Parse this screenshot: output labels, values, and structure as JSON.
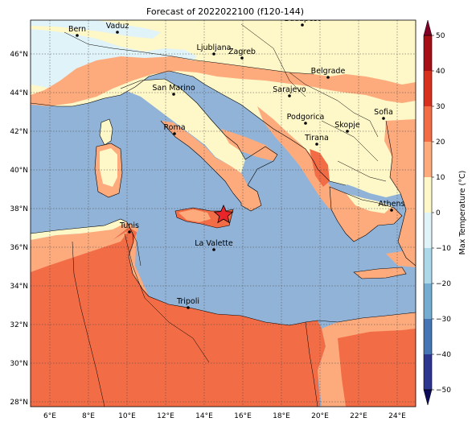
{
  "title": "Forecast of 2022022100 (f120-144)",
  "colorbar": {
    "label": "Max Temperature (°C)",
    "ticks": [
      "50",
      "40",
      "30",
      "20",
      "10",
      "0",
      "−10",
      "−20",
      "−30",
      "−40",
      "−50"
    ]
  },
  "axes": {
    "lon_ticks": [
      "6°E",
      "8°E",
      "10°E",
      "12°E",
      "14°E",
      "16°E",
      "18°E",
      "20°E",
      "22°E",
      "24°E"
    ],
    "lat_ticks": [
      "46°N",
      "44°N",
      "42°N",
      "40°N",
      "38°N",
      "36°N",
      "34°N",
      "32°N",
      "30°N",
      "28°N"
    ]
  },
  "cities": [
    {
      "name": "Bern"
    },
    {
      "name": "Vaduz"
    },
    {
      "name": "Budapest"
    },
    {
      "name": "Ljubljana"
    },
    {
      "name": "Zagreb"
    },
    {
      "name": "Belgrade"
    },
    {
      "name": "San Marino"
    },
    {
      "name": "Sarajevo"
    },
    {
      "name": "Sofia"
    },
    {
      "name": "Podgorica"
    },
    {
      "name": "Skopje"
    },
    {
      "name": "Roma"
    },
    {
      "name": "Tirana"
    },
    {
      "name": "Athens"
    },
    {
      "name": "Tunis"
    },
    {
      "name": "La Valette"
    },
    {
      "name": "Tripoli"
    }
  ],
  "colors": {
    "sea": "#91b3d7",
    "cold_band": "#e0f3f8",
    "cool_land": "#fef7c8",
    "mild": "#fdab7d",
    "warm": "#f26c46",
    "marker": "#e8262a"
  }
}
